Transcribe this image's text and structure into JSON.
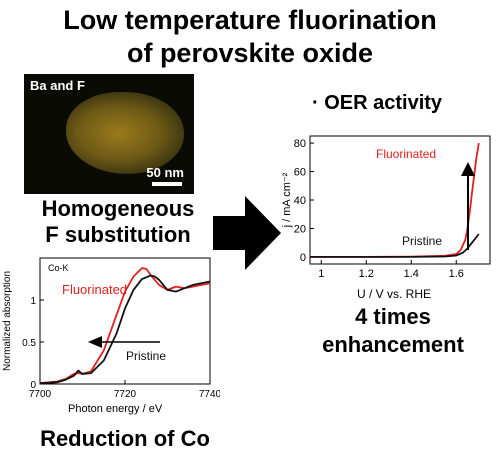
{
  "title": {
    "line1": "Low temperature fluorination",
    "line2": "of perovskite oxide"
  },
  "micrograph": {
    "label": "Ba and F",
    "scale_bar": "50 nm"
  },
  "captions": {
    "homogeneous_line1": "Homogeneous",
    "homogeneous_line2": "F substitution",
    "reduction": "Reduction of Co",
    "enhancement_line1": "4 times",
    "enhancement_line2": "enhancement",
    "oer_activity": "· OER activity"
  },
  "chart_data": [
    {
      "type": "line",
      "panel_label": "Co-K",
      "xlabel": "Photon energy / eV",
      "ylabel": "Normalized absorption",
      "xlim": [
        7700,
        7740
      ],
      "ylim": [
        0,
        1.5
      ],
      "xticks": [
        "7700",
        "7720",
        "7740"
      ],
      "yticks": [
        "0",
        "0.5",
        "1"
      ],
      "annotations": [
        "Fluorinated",
        "Pristine"
      ],
      "series": [
        {
          "name": "Fluorinated",
          "color": "#e02020",
          "x": [
            7700,
            7704,
            7706,
            7708,
            7709,
            7710,
            7712,
            7715,
            7718,
            7720,
            7722,
            7724,
            7725,
            7726,
            7728,
            7730,
            7732,
            7734,
            7736,
            7740
          ],
          "y": [
            0.01,
            0.03,
            0.06,
            0.12,
            0.13,
            0.12,
            0.15,
            0.4,
            0.82,
            1.1,
            1.28,
            1.38,
            1.37,
            1.3,
            1.18,
            1.12,
            1.16,
            1.14,
            1.16,
            1.2
          ]
        },
        {
          "name": "Pristine",
          "color": "#111111",
          "x": [
            7700,
            7704,
            7706,
            7708,
            7709,
            7710,
            7712,
            7715,
            7718,
            7720,
            7722,
            7724,
            7726,
            7727,
            7728,
            7730,
            7732,
            7734,
            7736,
            7740
          ],
          "y": [
            0.01,
            0.02,
            0.05,
            0.1,
            0.16,
            0.12,
            0.13,
            0.28,
            0.6,
            0.9,
            1.12,
            1.25,
            1.29,
            1.28,
            1.24,
            1.12,
            1.1,
            1.14,
            1.18,
            1.22
          ]
        }
      ]
    },
    {
      "type": "line",
      "xlabel": "U / V vs. RHE",
      "ylabel": "j / mA cm⁻²",
      "xlim": [
        0.95,
        1.75
      ],
      "ylim": [
        -5,
        85
      ],
      "xticks": [
        "1",
        "1.2",
        "1.4",
        "1.6"
      ],
      "yticks": [
        "0",
        "20",
        "40",
        "60",
        "80"
      ],
      "annotations": [
        "Fluorinated",
        "Pristine"
      ],
      "series": [
        {
          "name": "Fluorinated",
          "color": "#e02020",
          "x": [
            0.95,
            1.2,
            1.4,
            1.55,
            1.6,
            1.62,
            1.64,
            1.65,
            1.66,
            1.67,
            1.68,
            1.69,
            1.7
          ],
          "y": [
            0,
            0,
            0.2,
            0.8,
            2,
            5,
            12,
            20,
            32,
            45,
            58,
            70,
            80
          ]
        },
        {
          "name": "Pristine",
          "color": "#111111",
          "x": [
            0.95,
            1.2,
            1.4,
            1.55,
            1.6,
            1.63,
            1.65,
            1.67,
            1.69,
            1.7
          ],
          "y": [
            0,
            0,
            0,
            0.3,
            1,
            3,
            6,
            10,
            14,
            16
          ]
        }
      ]
    }
  ]
}
